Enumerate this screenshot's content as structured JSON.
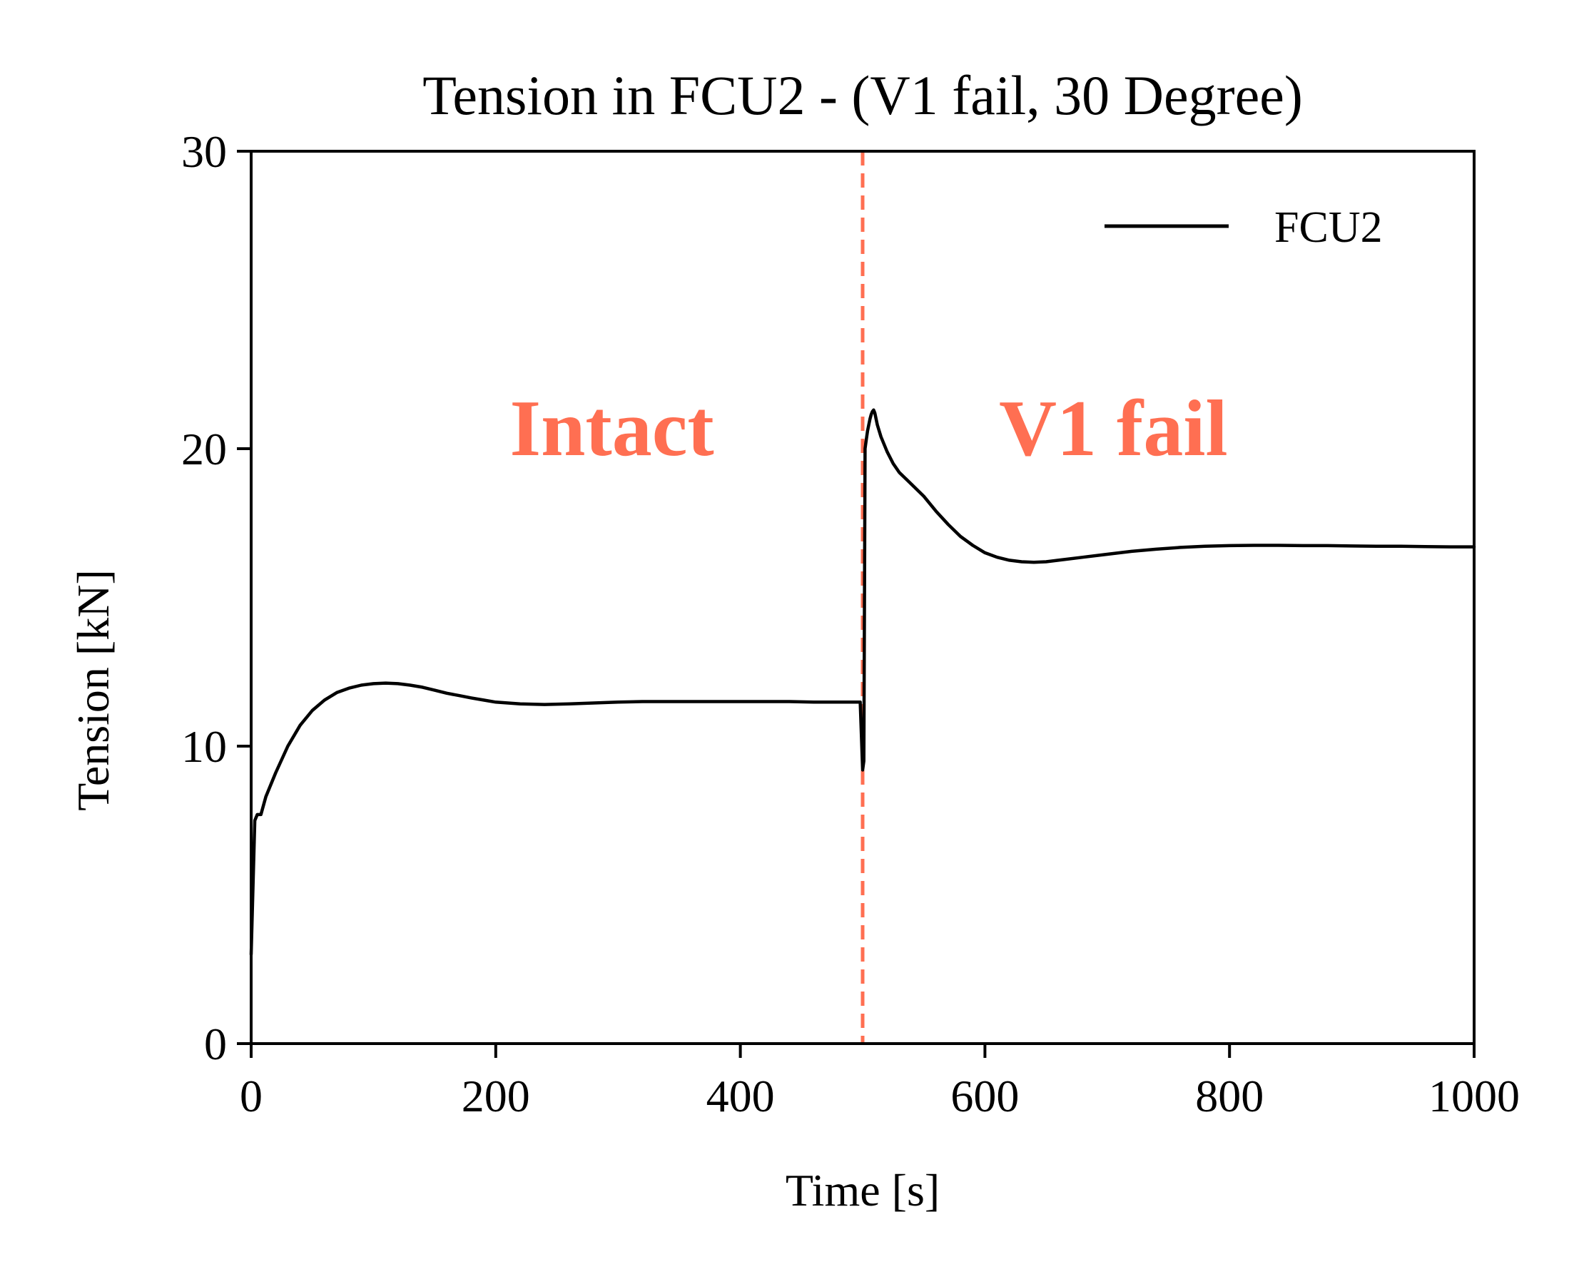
{
  "chart_data": {
    "type": "line",
    "title": "Tension in FCU2 - (V1 fail, 30 Degree)",
    "xlabel": "Time [s]",
    "ylabel": "Tension [kN]",
    "xlim": [
      0,
      1000
    ],
    "ylim": [
      0,
      30
    ],
    "xticks": [
      0,
      200,
      400,
      600,
      800,
      1000
    ],
    "yticks": [
      0,
      10,
      20,
      30
    ],
    "grid": false,
    "legend": {
      "position": "top-right",
      "entries": [
        "FCU2"
      ]
    },
    "series": [
      {
        "name": "FCU2",
        "color": "#000000",
        "x": [
          0,
          3,
          5,
          8,
          12,
          20,
          30,
          40,
          50,
          60,
          70,
          80,
          90,
          100,
          110,
          120,
          130,
          140,
          150,
          160,
          170,
          180,
          190,
          200,
          220,
          240,
          260,
          280,
          300,
          320,
          340,
          360,
          380,
          400,
          420,
          440,
          460,
          480,
          498,
          500,
          501,
          502,
          503,
          504,
          505,
          506,
          507,
          508,
          509,
          510,
          512,
          515,
          520,
          525,
          530,
          540,
          550,
          560,
          570,
          580,
          590,
          600,
          610,
          620,
          630,
          640,
          650,
          660,
          680,
          700,
          720,
          740,
          760,
          780,
          800,
          820,
          840,
          860,
          880,
          900,
          920,
          940,
          960,
          980,
          1000
        ],
        "y": [
          3.0,
          7.5,
          7.7,
          7.7,
          8.3,
          9.1,
          10.0,
          10.7,
          11.2,
          11.55,
          11.8,
          11.95,
          12.05,
          12.1,
          12.12,
          12.1,
          12.05,
          11.98,
          11.88,
          11.78,
          11.7,
          11.62,
          11.55,
          11.48,
          11.42,
          11.4,
          11.42,
          11.45,
          11.48,
          11.5,
          11.5,
          11.5,
          11.5,
          11.5,
          11.5,
          11.5,
          11.48,
          11.48,
          11.48,
          9.2,
          9.5,
          20.0,
          20.3,
          20.6,
          20.8,
          21.0,
          21.15,
          21.25,
          21.3,
          21.2,
          20.8,
          20.4,
          19.9,
          19.5,
          19.2,
          18.8,
          18.4,
          17.9,
          17.45,
          17.05,
          16.75,
          16.5,
          16.35,
          16.25,
          16.2,
          16.18,
          16.2,
          16.25,
          16.35,
          16.45,
          16.55,
          16.62,
          16.68,
          16.72,
          16.74,
          16.75,
          16.75,
          16.74,
          16.74,
          16.73,
          16.72,
          16.72,
          16.71,
          16.7,
          16.7
        ]
      }
    ],
    "annotations": [
      {
        "type": "vline",
        "x": 500,
        "color": "#FF6F52",
        "style": "dashed"
      },
      {
        "text": "Intact",
        "x": 295,
        "y": 20.7,
        "color": "#FF6F52"
      },
      {
        "text": "V1 fail",
        "x": 705,
        "y": 20.7,
        "color": "#FF6F52"
      }
    ]
  }
}
